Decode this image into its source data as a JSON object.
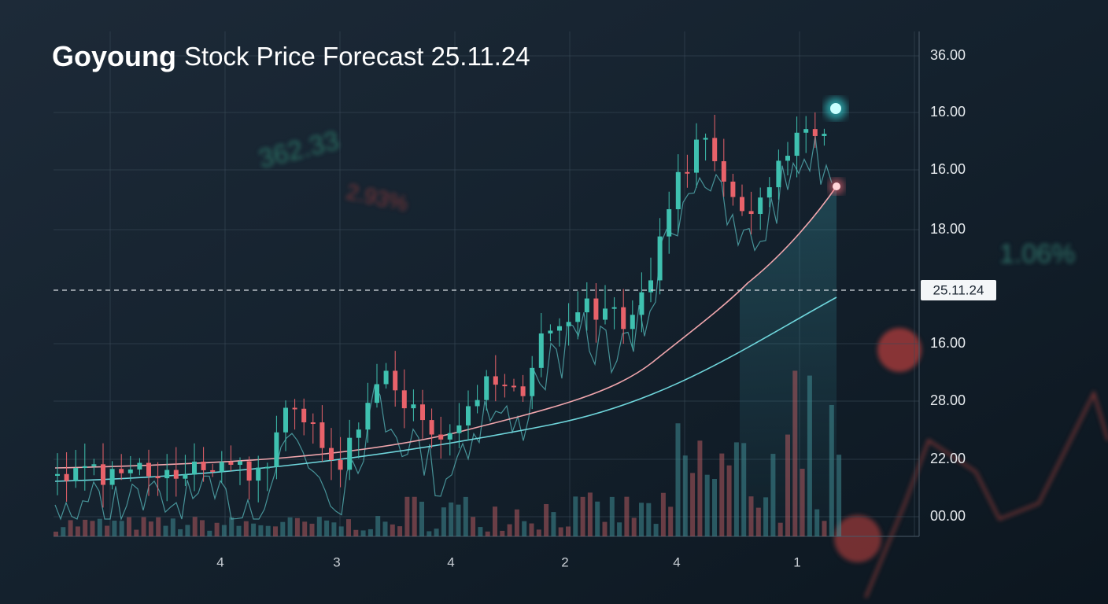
{
  "title": {
    "brand": "Goyoung",
    "rest": "Stock Price Forecast 25.11.24"
  },
  "y_axis_labels": [
    "36.00",
    "16.00",
    "16.00",
    "18.00",
    "16.00",
    "28.00",
    "22.00",
    "00.00"
  ],
  "current_marker": "25.11.24",
  "x_axis_labels": [
    "4",
    "3",
    "4",
    "2",
    "4",
    "1"
  ],
  "background_texts": [
    "362.33",
    "2.93%",
    "1.06%"
  ]
}
